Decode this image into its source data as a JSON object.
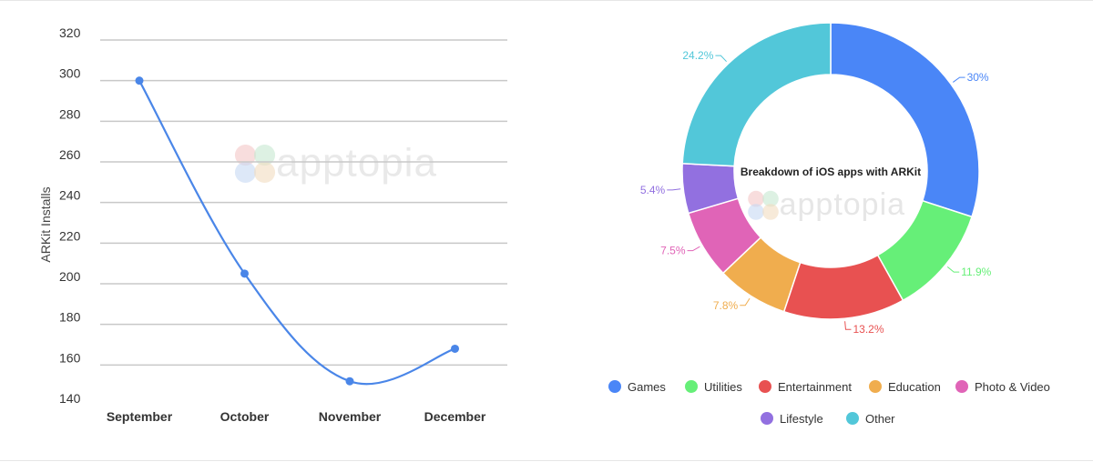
{
  "colors": {
    "line": "#4a86e8",
    "grid": "#c8c8c8",
    "background": "#ffffff"
  },
  "watermark": {
    "text": "apptopia"
  },
  "chart_data": [
    {
      "type": "line",
      "title": "",
      "xlabel": "",
      "ylabel": "ARKit Installs",
      "categories": [
        "September",
        "October",
        "November",
        "December"
      ],
      "series": [
        {
          "values": [
            300,
            205,
            152,
            168
          ]
        }
      ],
      "ylim": [
        140,
        320
      ],
      "yticks": [
        140,
        160,
        180,
        200,
        220,
        240,
        260,
        280,
        300,
        320
      ],
      "grid": true,
      "smooth": true
    },
    {
      "type": "pie",
      "donut": true,
      "title": "Breakdown of iOS apps with ARKit",
      "slices": [
        {
          "name": "Games",
          "value": 30,
          "label": "30%",
          "color": "#4a86f7"
        },
        {
          "name": "Utilities",
          "value": 11.9,
          "label": "11.9%",
          "color": "#66ef78"
        },
        {
          "name": "Entertainment",
          "value": 13.2,
          "label": "13.2%",
          "color": "#e85151"
        },
        {
          "name": "Education",
          "value": 7.8,
          "label": "7.8%",
          "color": "#f0ad4e"
        },
        {
          "name": "Photo & Video",
          "value": 7.5,
          "label": "7.5%",
          "color": "#e064b7"
        },
        {
          "name": "Lifestyle",
          "value": 5.4,
          "label": "5.4%",
          "color": "#9270e0"
        },
        {
          "name": "Other",
          "value": 24.2,
          "label": "24.2%",
          "color": "#52c7d9"
        }
      ],
      "legend": "bottom"
    }
  ]
}
